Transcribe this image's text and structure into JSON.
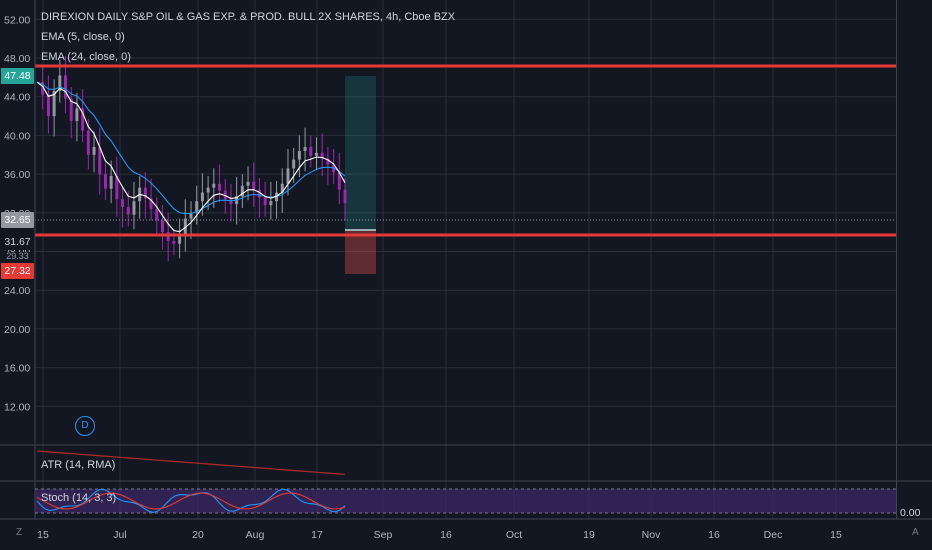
{
  "header": {
    "title": "DIREXION DAILY S&P OIL & GAS EXP. & PROD. BULL 2X SHARES, 4h, Cboe BZX",
    "indicators": [
      "EMA (5, close, 0)",
      "EMA (24, close, 0)"
    ]
  },
  "sub_panes": {
    "atr_label": "ATR (14, RMA)",
    "stoch_label": "Stoch (14, 3, 3)",
    "stoch_value": "0.00"
  },
  "price_tags": {
    "upper": "47.48",
    "current": "32.65",
    "level": "31.67",
    "stop": "27.32",
    "hidden": "29.33"
  },
  "colors": {
    "background": "#131722",
    "grid": "#2a2e39",
    "candle_up": "#9598a1",
    "candle_down": "#9c27b0",
    "ema5": "#ffffff",
    "ema24": "#2196f3",
    "resistance": "#e53935",
    "target_zone": "#26a69a",
    "stop_zone": "#ef5350",
    "atr": "#a52a2a",
    "stoch_k": "#2196f3",
    "stoch_d": "#e53935",
    "stoch_band": "#3d2a6a"
  },
  "marker": {
    "dividend": "D"
  },
  "corner": {
    "left": "Z",
    "right": "A"
  },
  "chart_data": {
    "type": "candlestick",
    "title": "DIREXION DAILY S&P OIL & GAS EXP. & PROD. BULL 2X SHARES, 4h, Cboe BZX",
    "y_ticks": [
      52.0,
      48.0,
      44.0,
      40.0,
      36.0,
      32.0,
      28.0,
      24.0,
      20.0,
      16.0,
      12.0
    ],
    "y_tick_labels": [
      "52.00",
      "48.00",
      "44.00",
      "40.00",
      "36.00",
      "32.00",
      "28.00",
      "24.00",
      "20.00",
      "16.00",
      "12.00"
    ],
    "ylim": [
      8.0,
      54.0
    ],
    "x_tick_labels": [
      "15",
      "Jul",
      "20",
      "Aug",
      "17",
      "Sep",
      "16",
      "Oct",
      "19",
      "Nov",
      "16",
      "Dec",
      "15"
    ],
    "horizontal_lines": [
      {
        "name": "resistance",
        "value": 48.6
      },
      {
        "name": "support",
        "value": 31.67
      }
    ],
    "position": {
      "entry": 32.65,
      "target": 47.48,
      "stop": 27.32
    },
    "close_series": [
      45.5,
      44.2,
      42.0,
      44.6,
      46.2,
      43.8,
      41.5,
      42.8,
      40.5,
      38.0,
      38.8,
      36.0,
      34.5,
      35.8,
      33.4,
      32.6,
      31.8,
      33.2,
      34.6,
      33.5,
      32.4,
      31.2,
      30.0,
      29.1,
      28.8,
      29.8,
      31.4,
      32.0,
      33.2,
      34.1,
      34.6,
      35.0,
      34.3,
      33.4,
      32.9,
      33.7,
      34.8,
      35.2,
      34.4,
      33.6,
      32.8,
      33.2,
      34.1,
      35.0,
      36.6,
      37.5,
      38.4,
      38.8,
      37.9,
      38.2,
      37.6,
      37.0,
      36.2,
      34.4,
      33.0
    ]
  }
}
